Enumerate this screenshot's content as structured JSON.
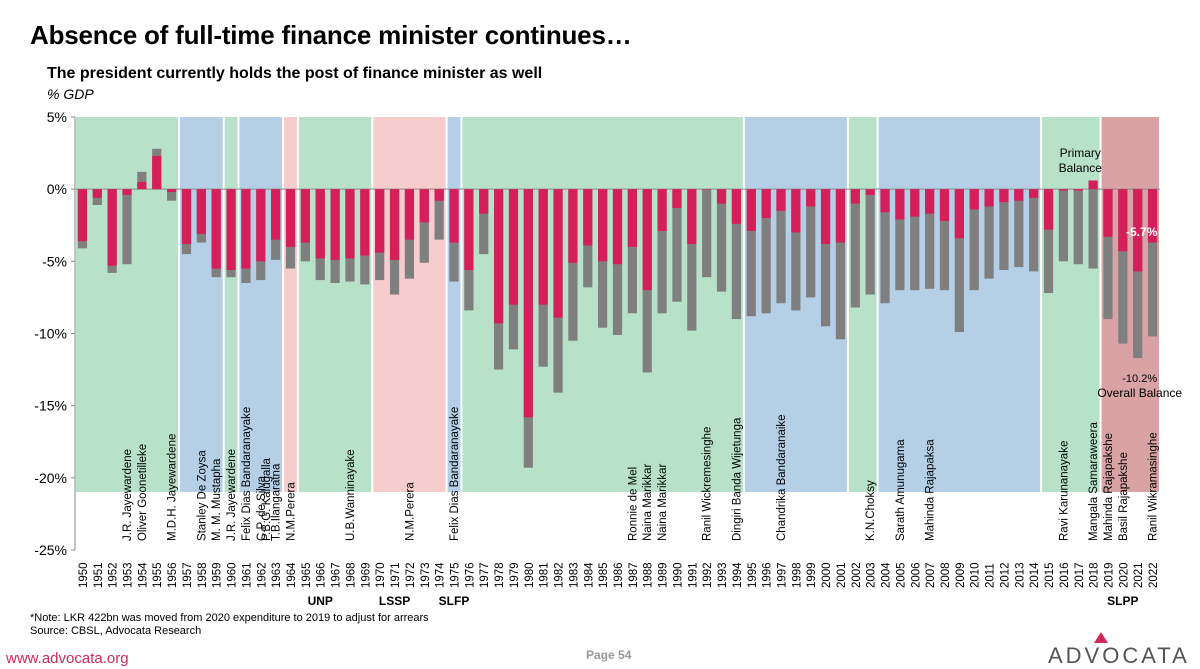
{
  "page_title": "Absence of full-time finance minister continues…",
  "footer": {
    "note": "*Note: LKR 422bn was moved from 2020 expenditure to 2019 to adjust for arrears",
    "source": "Source: CBSL,  Advocata Research",
    "website": "www.advocata.org",
    "page_label": "Page  54",
    "brand": "ADVOCATA"
  },
  "colors": {
    "primary_balance": "#d51f5a",
    "overall_balance": "#7f7f7f",
    "band_green": "#b7e2c9",
    "band_blue": "#b4cfe6",
    "band_pink": "#f7cccc",
    "band_rose": "#d9a3a6",
    "brand_accent": "#d12a5a"
  },
  "chart_data": {
    "type": "bar",
    "title": "The president currently holds the post of finance minister as well",
    "ylabel": "% GDP",
    "ylim": [
      -25,
      5
    ],
    "yticks": [
      "5%",
      "0%",
      "-5%",
      "-10%",
      "-15%",
      "-20%",
      "-25%"
    ],
    "categories": [
      "1950",
      "1951",
      "1952",
      "1953",
      "1954",
      "1955",
      "1956",
      "1957",
      "1958",
      "1959",
      "1960",
      "1961",
      "1962",
      "1963",
      "1964",
      "1965",
      "1966",
      "1967",
      "1968",
      "1969",
      "1970",
      "1971",
      "1972",
      "1973",
      "1974",
      "1975",
      "1976",
      "1977",
      "1978",
      "1979",
      "1980",
      "1981",
      "1982",
      "1983",
      "1984",
      "1985",
      "1986",
      "1987",
      "1988",
      "1989",
      "1990",
      "1991",
      "1992",
      "1993",
      "1994",
      "1995",
      "1996",
      "1997",
      "1998",
      "1999",
      "2000",
      "2001",
      "2002",
      "2003",
      "2004",
      "2005",
      "2006",
      "2007",
      "2008",
      "2009",
      "2010",
      "2011",
      "2012",
      "2013",
      "2014",
      "2015",
      "2016",
      "2017",
      "2018",
      "2019",
      "2020",
      "2021",
      "2022"
    ],
    "series": [
      {
        "name": "Primary Balance",
        "values": [
          -3.6,
          -0.6,
          -5.3,
          -0.4,
          0.5,
          2.3,
          -0.2,
          -3.8,
          -3.1,
          -5.5,
          -5.6,
          -5.5,
          -5.0,
          -3.5,
          -4.0,
          -3.7,
          -4.8,
          -4.9,
          -4.8,
          -4.6,
          -4.4,
          -4.9,
          -3.5,
          -2.3,
          -0.8,
          -3.7,
          -5.6,
          -1.7,
          -9.3,
          -8.0,
          -15.8,
          -8.0,
          -8.9,
          -5.1,
          -3.9,
          -5.0,
          -5.2,
          -4.0,
          -7.0,
          -2.9,
          -1.3,
          -3.8,
          0.0,
          -1.0,
          -2.4,
          -2.9,
          -2.0,
          -1.5,
          -3.0,
          -1.2,
          -3.8,
          -3.7,
          -1.0,
          -0.4,
          -1.6,
          -2.1,
          -1.9,
          -1.7,
          -2.2,
          -3.4,
          -1.4,
          -1.2,
          -0.9,
          -0.8,
          -0.6,
          -2.8,
          -0.1,
          -0.1,
          0.6,
          -3.3,
          -4.3,
          -5.7,
          -3.7
        ]
      },
      {
        "name": "Overall Balance",
        "values": [
          -4.1,
          -1.1,
          -5.8,
          -5.2,
          1.2,
          2.8,
          -0.8,
          -4.5,
          -3.7,
          -6.1,
          -6.1,
          -6.5,
          -6.3,
          -4.9,
          -5.5,
          -5.0,
          -6.3,
          -6.5,
          -6.4,
          -6.6,
          -6.3,
          -7.3,
          -6.2,
          -5.1,
          -3.5,
          -6.4,
          -8.4,
          -4.5,
          -12.5,
          -11.1,
          -19.3,
          -12.3,
          -14.1,
          -10.5,
          -6.8,
          -9.6,
          -10.1,
          -8.6,
          -12.7,
          -8.6,
          -7.8,
          -9.8,
          -6.1,
          -7.1,
          -9.0,
          -8.8,
          -8.6,
          -7.9,
          -8.4,
          -7.5,
          -9.5,
          -10.4,
          -8.2,
          -7.3,
          -7.9,
          -7.0,
          -7.0,
          -6.9,
          -7.0,
          -9.9,
          -7.0,
          -6.2,
          -5.6,
          -5.4,
          -5.7,
          -7.2,
          -5.0,
          -5.2,
          -5.5,
          -9.0,
          -10.7,
          -11.7,
          -10.2
        ]
      }
    ],
    "ministers": [
      {
        "year": "1953",
        "name": "J.R. Jayewardene"
      },
      {
        "year": "1954",
        "name": "Oliver Goonetilleke"
      },
      {
        "year": "1956",
        "name": "M.D.H. Jayewardene"
      },
      {
        "year": "1958",
        "name": "Stanley De Zoysa"
      },
      {
        "year": "1959",
        "name": "M. M. Mustapha"
      },
      {
        "year": "1960",
        "name": "J.R. Jayewardene"
      },
      {
        "year": "1961",
        "name": "Felix Dias Bandaranayake"
      },
      {
        "year": "1962",
        "name": "C.P. de Silva"
      },
      {
        "year": "1962",
        "name": "P.B.G. Kalugalla"
      },
      {
        "year": "1963",
        "name": "T.B.Ilangaratna"
      },
      {
        "year": "1964",
        "name": "N.M.Perera"
      },
      {
        "year": "1968",
        "name": "U.B.Wanninayake"
      },
      {
        "year": "1972",
        "name": "N.M.Perera"
      },
      {
        "year": "1975",
        "name": "Felix Dias Bandaranayake"
      },
      {
        "year": "1987",
        "name": "Ronnie de Mel"
      },
      {
        "year": "1988",
        "name": "Naina Marikkar"
      },
      {
        "year": "1989",
        "name": "Naina Marikkar"
      },
      {
        "year": "1992",
        "name": "Ranil Wickremesinghe"
      },
      {
        "year": "1994",
        "name": "Dingiri Banda Wijetunga"
      },
      {
        "year": "1997",
        "name": "Chandrika  Bandaranaike"
      },
      {
        "year": "2003",
        "name": "K.N.Choksy"
      },
      {
        "year": "2005",
        "name": "Sarath Amunugama"
      },
      {
        "year": "2007",
        "name": "Mahinda Rajapaksa"
      },
      {
        "year": "2016",
        "name": "Ravi Karunanayake"
      },
      {
        "year": "2018",
        "name": "Mangala Samaraweera"
      },
      {
        "year": "2019",
        "name": "Mahinda Rajapakshe"
      },
      {
        "year": "2020",
        "name": "Basil Rajapakshe"
      },
      {
        "year": "2022",
        "name": "Ranil Wikramasinghe"
      }
    ],
    "party_bands": [
      {
        "start": "1950",
        "end": "1956",
        "color": "green"
      },
      {
        "start": "1957",
        "end": "1959",
        "color": "blue"
      },
      {
        "start": "1960",
        "end": "1960",
        "color": "green"
      },
      {
        "start": "1961",
        "end": "1963",
        "color": "blue"
      },
      {
        "start": "1964",
        "end": "1964",
        "color": "pink"
      },
      {
        "start": "1965",
        "end": "1969",
        "color": "green"
      },
      {
        "start": "1970",
        "end": "1974",
        "color": "pink"
      },
      {
        "start": "1975",
        "end": "1975",
        "color": "blue"
      },
      {
        "start": "1976",
        "end": "1994",
        "color": "green"
      },
      {
        "start": "1995",
        "end": "2001",
        "color": "blue"
      },
      {
        "start": "2002",
        "end": "2003",
        "color": "green"
      },
      {
        "start": "2004",
        "end": "2014",
        "color": "blue"
      },
      {
        "start": "2015",
        "end": "2018",
        "color": "green"
      },
      {
        "start": "2019",
        "end": "2022",
        "color": "rose"
      }
    ],
    "party_labels": [
      {
        "label": "UNP",
        "year": "1966"
      },
      {
        "label": "LSSP",
        "year": "1971"
      },
      {
        "label": "SLFP",
        "year": "1975"
      },
      {
        "label": "SLPP",
        "year": "2020"
      }
    ],
    "annotations": {
      "primary_balance_label": "Primary",
      "primary_balance_label2": "Balance",
      "overall_balance_label": "Overall Balance",
      "value_2021_primary": "-5.7%",
      "value_2022_overall": "-10.2%"
    }
  }
}
